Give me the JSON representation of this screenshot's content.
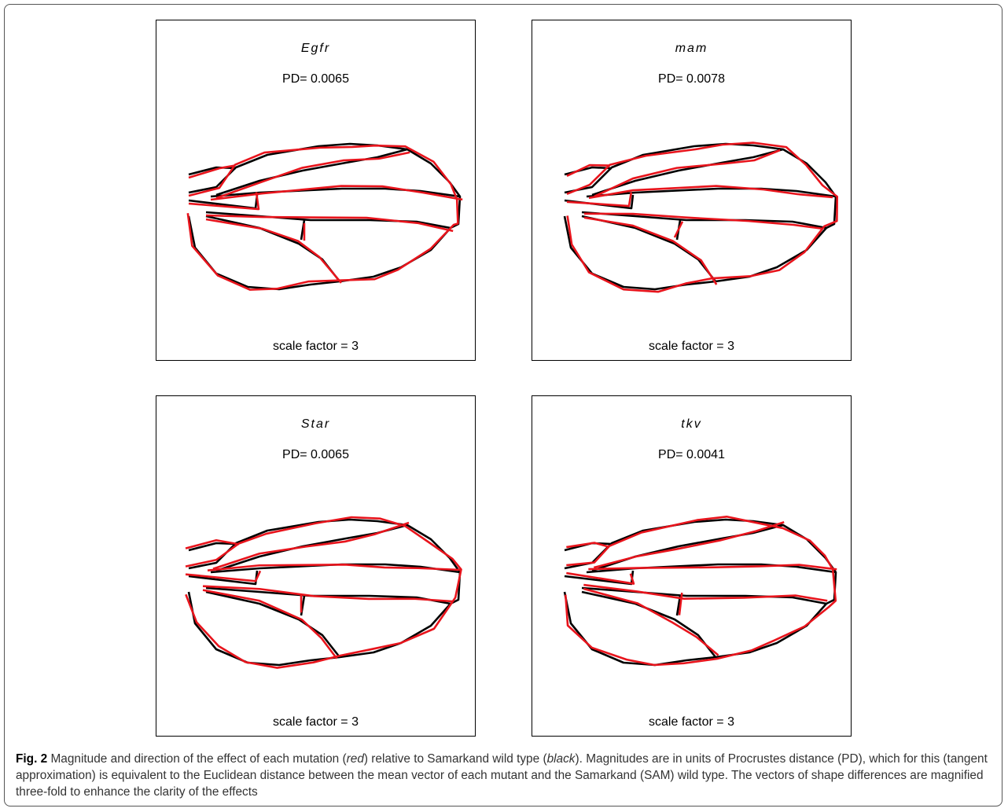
{
  "panels": [
    {
      "gene": "Egfr",
      "pd": "PD= 0.0065",
      "scale": "scale factor = 3"
    },
    {
      "gene": "mam",
      "pd": "PD= 0.0078",
      "scale": "scale factor = 3"
    },
    {
      "gene": "Star",
      "pd": "PD= 0.0065",
      "scale": "scale factor = 3"
    },
    {
      "gene": "tkv",
      "pd": "PD= 0.0041",
      "scale": "scale factor = 3"
    }
  ],
  "caption": {
    "label": "Fig. 2",
    "runs": [
      " Magnitude and direction of the effect of each mutation (",
      "red",
      ") relative to Samarkand wild type (",
      "black",
      "). Magnitudes are in units of Procrustes distance (PD), which for this (tangent approximation) is equivalent to the Euclidean distance between the mean vector of each mutant and the Samarkand (SAM) wild type. The vectors of shape differences are magnified three-fold to enhance the clarity of the effects"
    ]
  }
}
